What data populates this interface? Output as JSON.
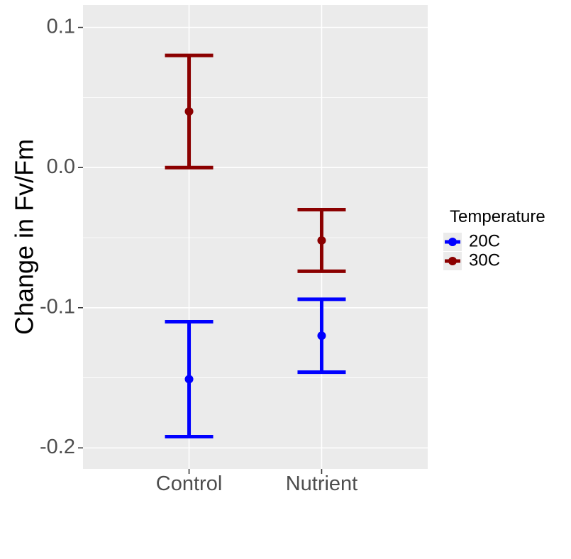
{
  "chart_data": {
    "type": "scatter",
    "subtype": "point-with-errorbars",
    "title": "",
    "xlabel": "",
    "ylabel": "Change in Fv/Fm",
    "categories": [
      "Control",
      "Nutrient"
    ],
    "ylim": [
      -0.215,
      0.116
    ],
    "yticks": [
      0.1,
      0.0,
      -0.1,
      -0.2
    ],
    "ytick_labels": [
      "0.1",
      "0.0",
      "-0.1",
      "-0.2"
    ],
    "grid": true,
    "legend": {
      "title": "Temperature",
      "position": "right"
    },
    "series": [
      {
        "name": "20C",
        "color": "#0000ff",
        "values": [
          -0.151,
          -0.12
        ],
        "lower": [
          -0.192,
          -0.146
        ],
        "upper": [
          -0.11,
          -0.094
        ]
      },
      {
        "name": "30C",
        "color": "#8b0000",
        "values": [
          0.04,
          -0.052
        ],
        "lower": [
          0.0,
          -0.074
        ],
        "upper": [
          0.08,
          -0.03
        ]
      }
    ],
    "panel_background": "#ebebeb",
    "grid_color": "#ffffff"
  }
}
